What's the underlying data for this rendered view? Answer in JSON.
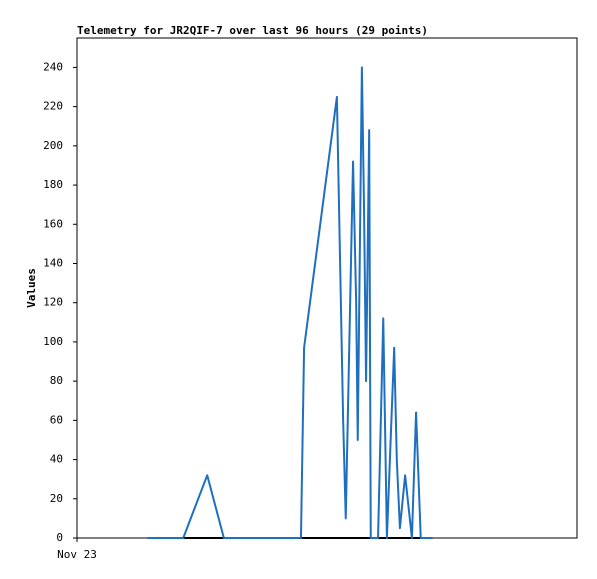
{
  "chart_data": {
    "type": "line",
    "title": "Telemetry for JR2QIF-7 over last 96 hours (29 points)",
    "y_label": "Values",
    "x": [
      13.6,
      20.4,
      25.0,
      28.2,
      43.0,
      43.6,
      49.9,
      51.1,
      51.6,
      53.0,
      53.6,
      53.9,
      54.7,
      55.1,
      55.5,
      56.1,
      56.4,
      57.8,
      58.8,
      59.5,
      60.9,
      61.4,
      62.0,
      63.0,
      64.3,
      65.1,
      66.0,
      67.2,
      68.2
    ],
    "series": [
      {
        "color": "#000000",
        "values": [
          0,
          0,
          0,
          0,
          0,
          0,
          0,
          0,
          0,
          0,
          0,
          0,
          0,
          0,
          0,
          0,
          0,
          0,
          0,
          0,
          0,
          0,
          0,
          0,
          0,
          0,
          0,
          0,
          0
        ]
      },
      {
        "color": "#1f6fbf",
        "values": [
          0,
          0,
          32,
          0,
          0,
          97,
          225,
          60,
          10,
          192,
          120,
          50,
          240,
          170,
          80,
          208,
          0,
          0,
          112,
          0,
          97,
          40,
          5,
          32,
          0,
          64,
          0,
          0,
          0
        ]
      }
    ],
    "xlim": [
      0,
      96
    ],
    "xticks": [
      {
        "value": 0,
        "label": "Nov 23"
      }
    ],
    "ylim": [
      0,
      255
    ],
    "yticks": [
      0,
      20,
      40,
      60,
      80,
      100,
      120,
      140,
      160,
      180,
      200,
      220,
      240
    ]
  }
}
